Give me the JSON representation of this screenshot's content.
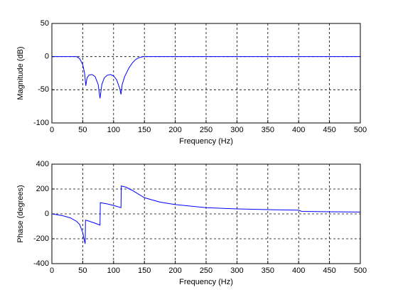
{
  "chart_data": [
    {
      "type": "line",
      "xlabel": "Frequency (Hz)",
      "ylabel": "Magnitude (dB)",
      "color": "#0000ff",
      "x": [
        0,
        40,
        45,
        50,
        53,
        55,
        57,
        60,
        65,
        70,
        75,
        78,
        81,
        85,
        90,
        95,
        100,
        105,
        110,
        112,
        114,
        118,
        125,
        130,
        135,
        140,
        148,
        500
      ],
      "values": [
        0,
        0,
        -3,
        -12,
        -25,
        -44,
        -32,
        -28,
        -27,
        -30,
        -42,
        -63,
        -42,
        -32,
        -28,
        -27,
        -29,
        -35,
        -48,
        -57,
        -42,
        -30,
        -17,
        -10,
        -5,
        -2,
        0,
        0
      ],
      "xlim": [
        0,
        500
      ],
      "xticks": [
        0,
        50,
        100,
        150,
        200,
        250,
        300,
        350,
        400,
        450,
        500
      ],
      "ylim": [
        -100,
        50
      ],
      "yticks": [
        -100,
        -50,
        0,
        50
      ],
      "grid": true
    },
    {
      "type": "line",
      "xlabel": "Frequency (Hz)",
      "ylabel": "Phase (degrees)",
      "color": "#0000ff",
      "x": [
        0,
        10,
        20,
        30,
        40,
        45,
        50,
        53,
        54,
        54.5,
        60,
        70,
        78,
        78.5,
        90,
        100,
        112,
        112.5,
        120,
        130,
        150,
        175,
        200,
        250,
        300,
        350,
        400,
        405,
        450,
        500
      ],
      "values": [
        0,
        -8,
        -18,
        -32,
        -60,
        -85,
        -150,
        -220,
        -240,
        -50,
        -58,
        -75,
        -90,
        90,
        80,
        68,
        50,
        225,
        215,
        190,
        130,
        95,
        75,
        50,
        40,
        34,
        30,
        20,
        17,
        15
      ],
      "xlim": [
        0,
        500
      ],
      "xticks": [
        0,
        50,
        100,
        150,
        200,
        250,
        300,
        350,
        400,
        450,
        500
      ],
      "ylim": [
        -400,
        400
      ],
      "yticks": [
        -400,
        -200,
        0,
        200,
        400
      ],
      "grid": true
    }
  ]
}
